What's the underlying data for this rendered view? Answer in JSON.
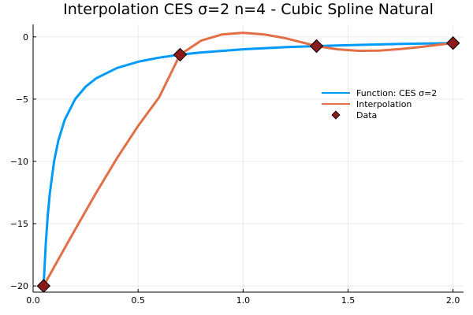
{
  "chart_data": {
    "type": "line",
    "title": "Interpolation CES σ=2 n=4 - Cubic Spline Natural",
    "xlabel": "",
    "ylabel": "",
    "xlim": [
      0.0,
      2.05
    ],
    "ylim": [
      -20.5,
      1.0
    ],
    "xticks": [
      0.0,
      0.5,
      1.0,
      1.5,
      2.0
    ],
    "xtick_labels": [
      "0.0",
      "0.5",
      "1.0",
      "1.5",
      "2.0"
    ],
    "yticks": [
      -20,
      -15,
      -10,
      -5,
      0
    ],
    "ytick_labels": [
      "−20",
      "−15",
      "−10",
      "−5",
      "0"
    ],
    "grid": true,
    "legend_position": "right",
    "series": [
      {
        "name": "Function: CES σ=2",
        "type": "line",
        "color": "#009af9",
        "x": [
          0.05,
          0.06,
          0.07,
          0.08,
          0.1,
          0.12,
          0.15,
          0.2,
          0.25,
          0.3,
          0.4,
          0.5,
          0.6,
          0.7,
          0.8,
          1.0,
          1.2,
          1.35,
          1.5,
          1.75,
          2.0
        ],
        "y": [
          -20.0,
          -16.67,
          -14.29,
          -12.5,
          -10.0,
          -8.33,
          -6.67,
          -5.0,
          -4.0,
          -3.33,
          -2.5,
          -2.0,
          -1.67,
          -1.43,
          -1.25,
          -1.0,
          -0.83,
          -0.74,
          -0.67,
          -0.57,
          -0.5
        ]
      },
      {
        "name": "Interpolation",
        "type": "line",
        "color": "#e26f46",
        "x": [
          0.05,
          0.1,
          0.2,
          0.3,
          0.4,
          0.5,
          0.6,
          0.7,
          0.8,
          0.9,
          1.0,
          1.1,
          1.2,
          1.35,
          1.45,
          1.55,
          1.65,
          1.75,
          1.85,
          1.95,
          2.0
        ],
        "y": [
          -20.0,
          -18.48,
          -15.47,
          -12.53,
          -9.73,
          -7.15,
          -4.86,
          -1.43,
          -0.3,
          0.2,
          0.33,
          0.2,
          -0.1,
          -0.74,
          -1.0,
          -1.12,
          -1.1,
          -0.98,
          -0.8,
          -0.6,
          -0.5
        ]
      },
      {
        "name": "Data",
        "type": "scatter",
        "marker": "diamond",
        "color": "#8b1a1a",
        "x": [
          0.05,
          0.7,
          1.35,
          2.0
        ],
        "y": [
          -20.0,
          -1.43,
          -0.74,
          -0.5
        ]
      }
    ]
  }
}
